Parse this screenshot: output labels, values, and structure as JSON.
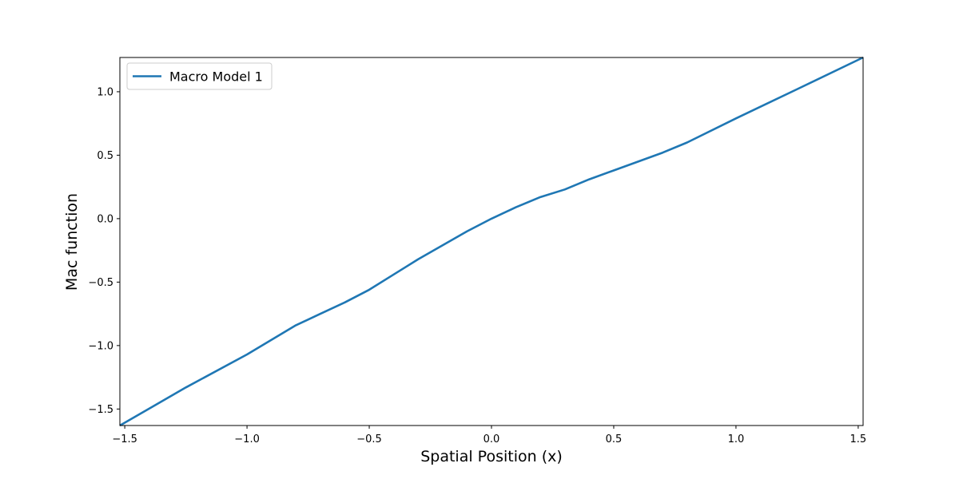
{
  "chart_data": {
    "type": "line",
    "xlabel": "Spatial Position (x)",
    "ylabel": "Mac function",
    "xlim": [
      -1.52,
      1.52
    ],
    "ylim": [
      -1.63,
      1.27
    ],
    "grid": false,
    "legend": {
      "placement": "top-left"
    },
    "x_ticks": [
      -1.5,
      -1.0,
      -0.5,
      0.0,
      0.5,
      1.0,
      1.5
    ],
    "x_tick_labels": [
      "−1.5",
      "−1.0",
      "−0.5",
      "0.0",
      "0.5",
      "1.0",
      "1.5"
    ],
    "y_ticks": [
      -1.5,
      -1.0,
      -0.5,
      0.0,
      0.5,
      1.0
    ],
    "y_tick_labels": [
      "−1.5",
      "−1.0",
      "−0.5",
      "0.0",
      "0.5",
      "1.0"
    ],
    "series": [
      {
        "name": "Macro Model 1",
        "color": "#1f77b4",
        "x": [
          -1.52,
          -1.25,
          -1.0,
          -0.8,
          -0.7,
          -0.6,
          -0.5,
          -0.4,
          -0.3,
          -0.2,
          -0.1,
          0.0,
          0.1,
          0.2,
          0.3,
          0.4,
          0.5,
          0.6,
          0.7,
          0.8,
          1.0,
          1.25,
          1.52
        ],
        "y": [
          -1.63,
          -1.33,
          -1.07,
          -0.84,
          -0.75,
          -0.66,
          -0.56,
          -0.44,
          -0.32,
          -0.21,
          -0.1,
          0.0,
          0.09,
          0.17,
          0.23,
          0.31,
          0.38,
          0.45,
          0.52,
          0.6,
          0.79,
          1.02,
          1.27
        ]
      }
    ]
  }
}
